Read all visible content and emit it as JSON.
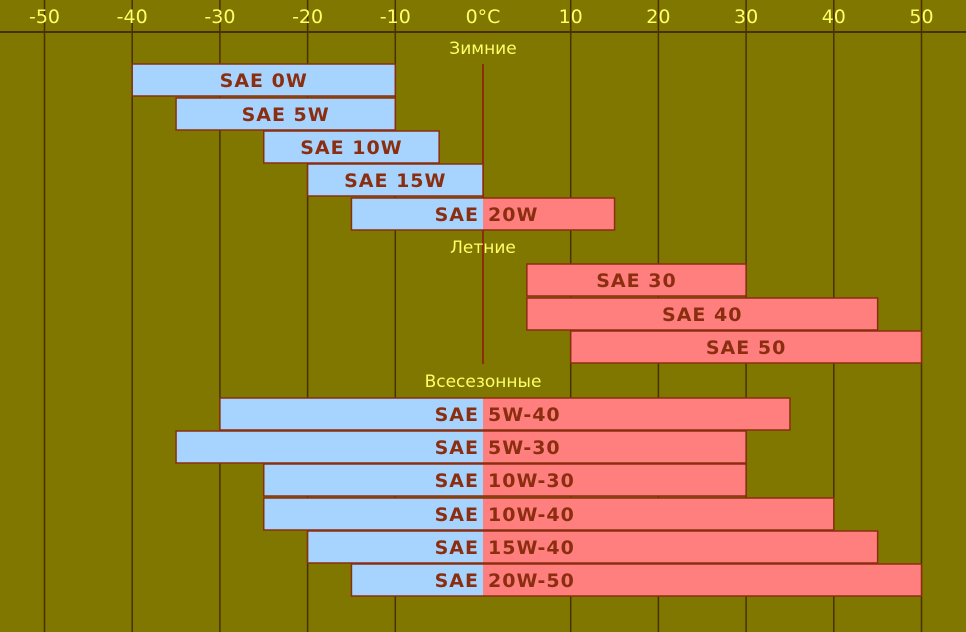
{
  "chart_data": {
    "type": "bar",
    "orientation": "horizontal-range",
    "x_ticks": [
      "-50",
      "-40",
      "-30",
      "-20",
      "-10",
      "0°C",
      "10",
      "20",
      "30",
      "40",
      "50"
    ],
    "x_tick_values": [
      -50,
      -40,
      -30,
      -20,
      -10,
      0,
      10,
      20,
      30,
      40,
      50
    ],
    "xlim": [
      -55,
      54
    ],
    "grid": true,
    "colors": {
      "background": "#7f7700",
      "grid": "#4a3000",
      "cold": "#a6d4ff",
      "warm": "#ff7f7f",
      "bar_border": "#8b2e10",
      "label": "#8b2e10",
      "axis_text": "#ffff66"
    },
    "groups": [
      {
        "name": "Зимние",
        "bars": [
          {
            "prefix": "SAE 0W",
            "suffix": "",
            "start": -40,
            "end": -10
          },
          {
            "prefix": "SAE 5W",
            "suffix": "",
            "start": -35,
            "end": -10
          },
          {
            "prefix": "SAE 10W",
            "suffix": "",
            "start": -25,
            "end": -5
          },
          {
            "prefix": "SAE 15W",
            "suffix": "",
            "start": -20,
            "end": 0
          },
          {
            "prefix": "SAE",
            "suffix": "20W",
            "start": -15,
            "end": 15
          }
        ]
      },
      {
        "name": "Летние",
        "bars": [
          {
            "prefix": "SAE 30",
            "suffix": "",
            "start": 5,
            "end": 30
          },
          {
            "prefix": "SAE 40",
            "suffix": "",
            "start": 5,
            "end": 45
          },
          {
            "prefix": "SAE 50",
            "suffix": "",
            "start": 10,
            "end": 50
          }
        ]
      },
      {
        "name": "Всесезонные",
        "bars": [
          {
            "prefix": "SAE",
            "suffix": "5W-40",
            "start": -30,
            "end": 35
          },
          {
            "prefix": "SAE",
            "suffix": "5W-30",
            "start": -35,
            "end": 30
          },
          {
            "prefix": "SAE",
            "suffix": "10W-30",
            "start": -25,
            "end": 30
          },
          {
            "prefix": "SAE",
            "suffix": "10W-40",
            "start": -25,
            "end": 40
          },
          {
            "prefix": "SAE",
            "suffix": "15W-40",
            "start": -20,
            "end": 45
          },
          {
            "prefix": "SAE",
            "suffix": "20W-50",
            "start": -15,
            "end": 50
          }
        ]
      }
    ]
  }
}
